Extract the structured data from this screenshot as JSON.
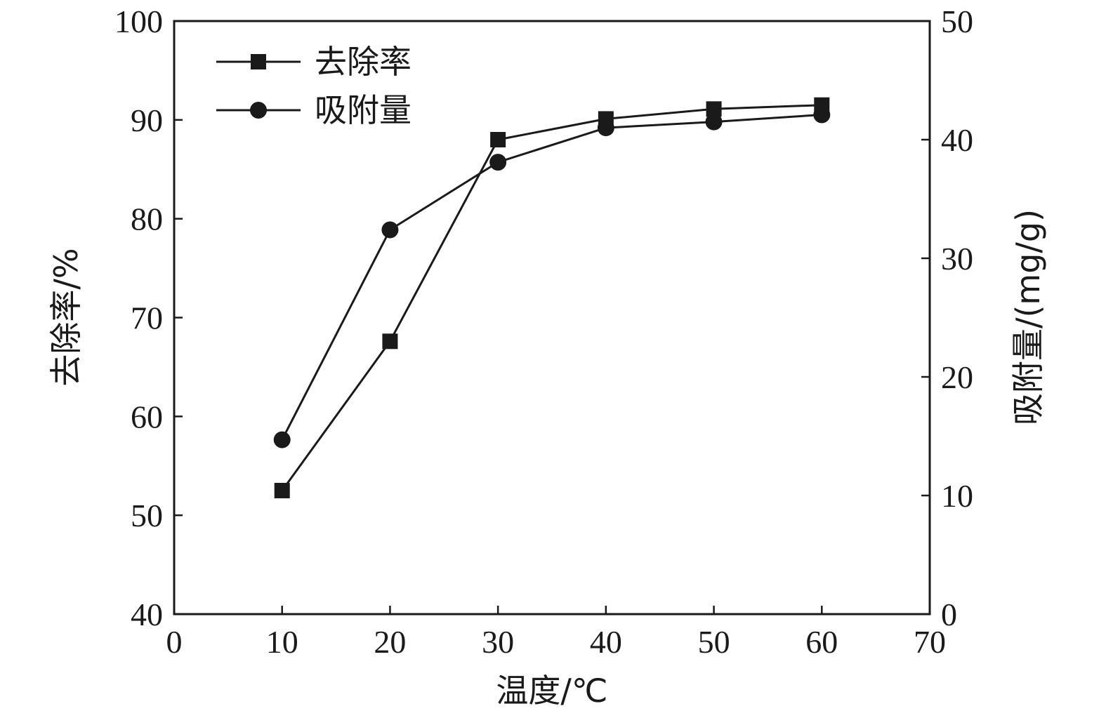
{
  "chart_data": {
    "type": "line",
    "xlabel": "温度/℃",
    "ylabel_left": "去除率/%",
    "ylabel_right": "吸附量/(mg/g)",
    "xlim": [
      0,
      70
    ],
    "ylim_left": [
      40,
      100
    ],
    "ylim_right": [
      0,
      50
    ],
    "x_ticks": [
      "0",
      "10",
      "20",
      "30",
      "40",
      "50",
      "60",
      "70"
    ],
    "y_left_ticks": [
      "40",
      "50",
      "60",
      "70",
      "80",
      "90",
      "100"
    ],
    "y_right_ticks": [
      "0",
      "10",
      "20",
      "30",
      "40",
      "50"
    ],
    "grid": false,
    "legend_position": "top-left",
    "x": [
      10,
      20,
      30,
      40,
      50,
      60
    ],
    "series": [
      {
        "name": "去除率",
        "axis": "left",
        "marker": "square",
        "values": [
          52.5,
          67.6,
          88.0,
          90.1,
          91.1,
          91.5
        ]
      },
      {
        "name": "吸附量",
        "axis": "right",
        "marker": "circle",
        "values": [
          14.7,
          32.4,
          38.1,
          41.0,
          41.5,
          42.1
        ]
      }
    ],
    "colors": {
      "line": "#1a1a1a",
      "marker": "#1a1a1a"
    }
  }
}
